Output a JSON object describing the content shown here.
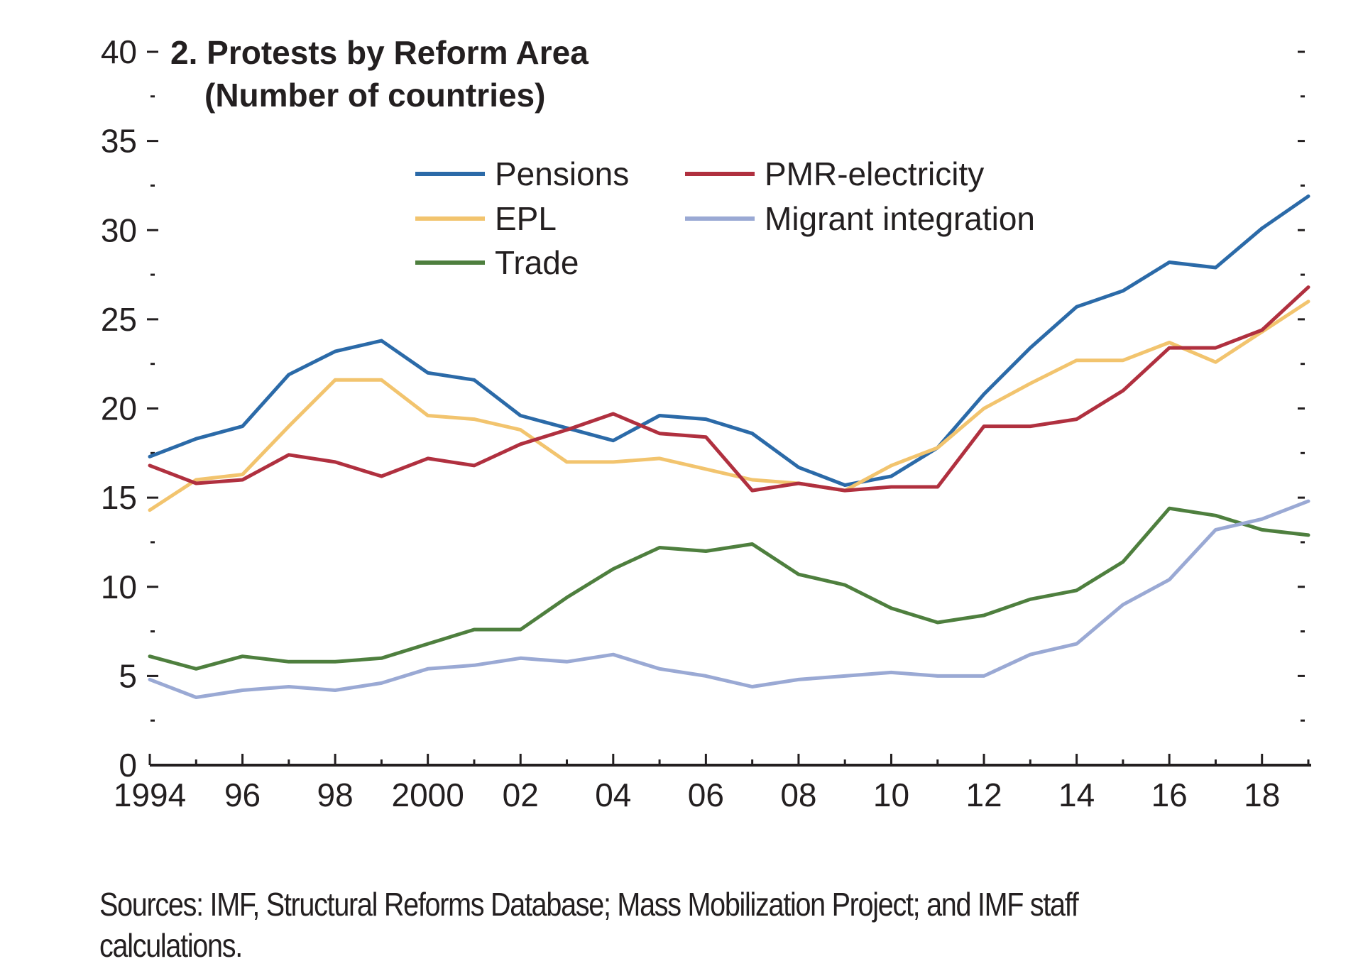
{
  "chart_data": {
    "type": "line",
    "title": "2. Protests by Reform Area",
    "subtitle": "(Number of countries)",
    "xlabel": "",
    "ylabel": "",
    "ylim": [
      0,
      40
    ],
    "xlim": [
      1994,
      2019
    ],
    "y_ticks": [
      0,
      5,
      10,
      15,
      20,
      25,
      30,
      35,
      40
    ],
    "y_tick_labels": [
      "0",
      "5",
      "10",
      "15",
      "20",
      "25",
      "30",
      "35",
      "40"
    ],
    "x_ticks": [
      1994,
      1996,
      1998,
      2000,
      2002,
      2004,
      2006,
      2008,
      2010,
      2012,
      2014,
      2016,
      2018
    ],
    "x_tick_labels": [
      "1994",
      "96",
      "98",
      "2000",
      "02",
      "04",
      "06",
      "08",
      "10",
      "12",
      "14",
      "16",
      "18"
    ],
    "grid": false,
    "legend_position": "top-center",
    "x": [
      1994,
      1995,
      1996,
      1997,
      1998,
      1999,
      2000,
      2001,
      2002,
      2003,
      2004,
      2005,
      2006,
      2007,
      2008,
      2009,
      2010,
      2011,
      2012,
      2013,
      2014,
      2015,
      2016,
      2017,
      2018,
      2019
    ],
    "series": [
      {
        "name": "Pensions",
        "color": "#2b6aa8",
        "values": [
          17.3,
          18.3,
          19.0,
          21.9,
          23.2,
          23.8,
          22.0,
          21.6,
          19.6,
          18.9,
          18.2,
          19.6,
          19.4,
          18.6,
          16.7,
          15.7,
          16.2,
          17.8,
          20.8,
          23.4,
          25.7,
          26.6,
          28.2,
          27.9,
          30.1,
          31.9
        ]
      },
      {
        "name": "EPL",
        "color": "#f2c46e",
        "values": [
          14.3,
          16.0,
          16.3,
          19.0,
          21.6,
          21.6,
          19.6,
          19.4,
          18.8,
          17.0,
          17.0,
          17.2,
          16.6,
          16.0,
          15.8,
          15.4,
          16.8,
          17.8,
          20.0,
          21.4,
          22.7,
          22.7,
          23.7,
          22.6,
          24.3,
          26.0
        ]
      },
      {
        "name": "Trade",
        "color": "#4e7f3e",
        "values": [
          6.1,
          5.4,
          6.1,
          5.8,
          5.8,
          6.0,
          6.8,
          7.6,
          7.6,
          9.4,
          11.0,
          12.2,
          12.0,
          12.4,
          10.7,
          10.1,
          8.8,
          8.0,
          8.4,
          9.3,
          9.8,
          11.4,
          14.4,
          14.0,
          13.2,
          12.9
        ]
      },
      {
        "name": "PMR-electricity",
        "color": "#b0303f",
        "values": [
          16.8,
          15.8,
          16.0,
          17.4,
          17.0,
          16.2,
          17.2,
          16.8,
          18.0,
          18.8,
          19.7,
          18.6,
          18.4,
          15.4,
          15.8,
          15.4,
          15.6,
          15.6,
          19.0,
          19.0,
          19.4,
          21.0,
          23.4,
          23.4,
          24.4,
          26.8
        ]
      },
      {
        "name": "Migrant integration",
        "color": "#9aa9d4",
        "values": [
          4.8,
          3.8,
          4.2,
          4.4,
          4.2,
          4.6,
          5.4,
          5.6,
          6.0,
          5.8,
          6.2,
          5.4,
          5.0,
          4.4,
          4.8,
          5.0,
          5.2,
          5.0,
          5.0,
          6.2,
          6.8,
          9.0,
          10.4,
          13.2,
          13.8,
          14.8
        ]
      }
    ]
  },
  "legend": {
    "items": [
      {
        "label": "Pensions",
        "color": "#2b6aa8"
      },
      {
        "label": "EPL",
        "color": "#f2c46e"
      },
      {
        "label": "Trade",
        "color": "#4e7f3e"
      },
      {
        "label": "PMR-electricity",
        "color": "#b0303f"
      },
      {
        "label": "Migrant integration",
        "color": "#9aa9d4"
      }
    ]
  },
  "footer": {
    "sources": "Sources: IMF, Structural Reforms Database; Mass Mobilization Project; and IMF staff calculations."
  }
}
